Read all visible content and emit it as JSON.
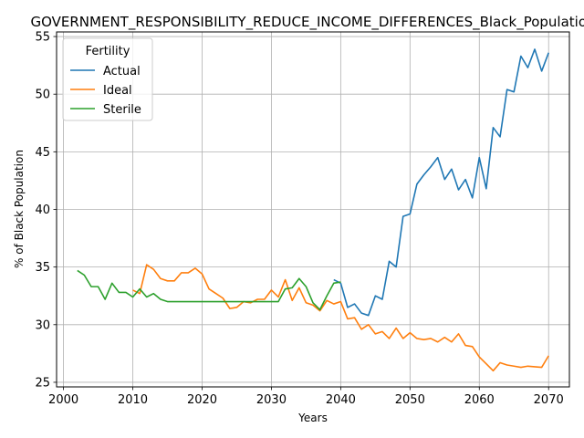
{
  "chart_data": {
    "type": "line",
    "title": "GOVERNMENT_RESPONSIBILITY_REDUCE_INCOME_DIFFERENCES_Black_Population",
    "xlabel": "Years",
    "ylabel": "% of Black Population",
    "xlim": [
      1999,
      2073
    ],
    "ylim": [
      24.6,
      55.4
    ],
    "xticks": [
      2000,
      2010,
      2020,
      2030,
      2040,
      2050,
      2060,
      2070
    ],
    "yticks": [
      25,
      30,
      35,
      40,
      45,
      50,
      55
    ],
    "grid": true,
    "legend": {
      "title": "Fertility",
      "position": "top-left"
    },
    "series": [
      {
        "name": "Actual",
        "color": "#1f77b4",
        "x": [
          2039,
          2040,
          2041,
          2042,
          2043,
          2044,
          2045,
          2046,
          2047,
          2048,
          2049,
          2050,
          2051,
          2052,
          2053,
          2054,
          2055,
          2056,
          2057,
          2058,
          2059,
          2060,
          2061,
          2062,
          2063,
          2064,
          2065,
          2066,
          2067,
          2068,
          2069,
          2070
        ],
        "values": [
          33.9,
          33.6,
          31.5,
          31.8,
          31.0,
          30.8,
          32.5,
          32.2,
          35.5,
          35.0,
          39.4,
          39.6,
          42.2,
          43.0,
          43.7,
          44.5,
          42.6,
          43.5,
          41.7,
          42.6,
          41.0,
          44.5,
          41.8,
          47.1,
          46.3,
          50.4,
          50.2,
          53.3,
          52.3,
          53.9,
          52.0,
          53.6
        ]
      },
      {
        "name": "Ideal",
        "color": "#ff7f0e",
        "x": [
          2010,
          2011,
          2012,
          2013,
          2014,
          2015,
          2016,
          2017,
          2018,
          2019,
          2020,
          2021,
          2022,
          2023,
          2024,
          2025,
          2026,
          2027,
          2028,
          2029,
          2030,
          2031,
          2032,
          2033,
          2034,
          2035,
          2036,
          2037,
          2038,
          2039,
          2040,
          2041,
          2042,
          2043,
          2044,
          2045,
          2046,
          2047,
          2048,
          2049,
          2050,
          2051,
          2052,
          2053,
          2054,
          2055,
          2056,
          2057,
          2058,
          2059,
          2060,
          2061,
          2062,
          2063,
          2064,
          2065,
          2066,
          2067,
          2068,
          2069,
          2070
        ],
        "values": [
          33.0,
          32.7,
          35.2,
          34.8,
          34.0,
          33.8,
          33.8,
          34.5,
          34.5,
          34.9,
          34.4,
          33.1,
          32.7,
          32.3,
          31.4,
          31.5,
          32.0,
          31.9,
          32.2,
          32.2,
          33.0,
          32.4,
          33.9,
          32.1,
          33.2,
          31.9,
          31.7,
          31.2,
          32.1,
          31.8,
          32.0,
          30.5,
          30.6,
          29.6,
          30.0,
          29.2,
          29.4,
          28.8,
          29.7,
          28.8,
          29.3,
          28.8,
          28.7,
          28.8,
          28.5,
          28.9,
          28.5,
          29.2,
          28.2,
          28.1,
          27.2,
          26.6,
          26.0,
          26.7,
          26.5,
          26.4,
          26.3,
          26.4,
          26.35,
          26.3,
          27.3
        ]
      },
      {
        "name": "Sterile",
        "color": "#2ca02c",
        "x": [
          2002,
          2003,
          2004,
          2005,
          2006,
          2007,
          2008,
          2009,
          2010,
          2011,
          2012,
          2013,
          2014,
          2015,
          2016,
          2017,
          2018,
          2019,
          2020,
          2021,
          2022,
          2023,
          2024,
          2025,
          2026,
          2027,
          2028,
          2029,
          2030,
          2031,
          2032,
          2033,
          2034,
          2035,
          2036,
          2037,
          2038,
          2039,
          2040
        ],
        "values": [
          34.7,
          34.3,
          33.3,
          33.3,
          32.2,
          33.6,
          32.8,
          32.8,
          32.4,
          33.1,
          32.4,
          32.7,
          32.2,
          32.0,
          32.0,
          32.0,
          32.0,
          32.0,
          32.0,
          32.0,
          32.0,
          32.0,
          32.0,
          32.0,
          32.0,
          32.0,
          32.0,
          32.0,
          32.0,
          32.0,
          33.1,
          33.2,
          34.0,
          33.3,
          31.9,
          31.3,
          32.5,
          33.6,
          33.7
        ]
      }
    ]
  }
}
